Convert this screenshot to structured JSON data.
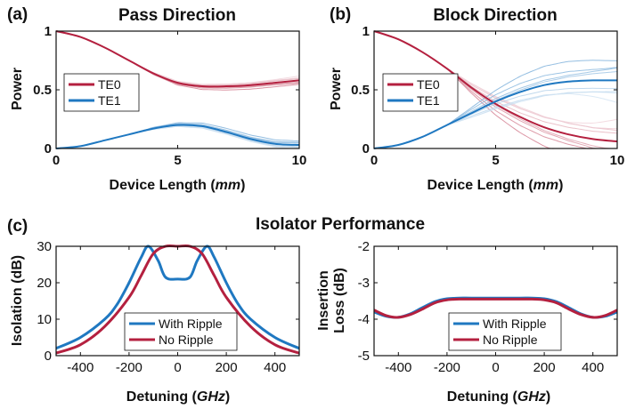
{
  "colors": {
    "te0": "#b4203f",
    "te1": "#1f78c1",
    "with_ripple": "#1f78c1",
    "no_ripple": "#b4203f"
  },
  "chart_data": [
    {
      "panel": "(a)",
      "type": "line",
      "title": "Pass Direction",
      "xlabel": "Device Length (mm)",
      "xlabel_main": "Device Length (",
      "xlabel_unit": "mm",
      "xlabel_close": ")",
      "ylabel": "Power",
      "xlim": [
        0,
        10
      ],
      "ylim": [
        0,
        1
      ],
      "xticks": [
        0,
        5,
        10
      ],
      "yticks": [
        0,
        0.5,
        1
      ],
      "xtick_labels": [
        "0",
        "5",
        "10"
      ],
      "ytick_labels": [
        "0",
        "0.5",
        "1"
      ],
      "legend": {
        "position": "left",
        "entries": [
          "TE0",
          "TE1"
        ]
      },
      "series": [
        {
          "name": "TE0",
          "x": [
            0,
            1,
            2,
            3,
            4,
            5,
            6,
            7,
            8,
            9,
            10
          ],
          "values": [
            1.0,
            0.95,
            0.86,
            0.75,
            0.64,
            0.56,
            0.53,
            0.53,
            0.54,
            0.56,
            0.58
          ]
        },
        {
          "name": "TE1",
          "x": [
            0,
            1,
            2,
            3,
            4,
            5,
            6,
            7,
            8,
            9,
            10
          ],
          "values": [
            0.0,
            0.02,
            0.07,
            0.12,
            0.17,
            0.2,
            0.19,
            0.14,
            0.08,
            0.04,
            0.03
          ]
        }
      ],
      "ripple_shading": true
    },
    {
      "panel": "(b)",
      "type": "line",
      "title": "Block Direction",
      "xlabel": "Device Length (mm)",
      "xlabel_main": "Device Length (",
      "xlabel_unit": "mm",
      "xlabel_close": ")",
      "ylabel": "Power",
      "xlim": [
        0,
        10
      ],
      "ylim": [
        0,
        1
      ],
      "xticks": [
        0,
        5,
        10
      ],
      "yticks": [
        0,
        0.5,
        1
      ],
      "xtick_labels": [
        "0",
        "5",
        "10"
      ],
      "ytick_labels": [
        "0",
        "0.5",
        "1"
      ],
      "legend": {
        "position": "left",
        "entries": [
          "TE0",
          "TE1"
        ]
      },
      "series": [
        {
          "name": "TE0",
          "x": [
            0,
            1,
            2,
            3,
            4,
            5,
            6,
            7,
            8,
            9,
            10
          ],
          "values": [
            1.0,
            0.93,
            0.82,
            0.68,
            0.52,
            0.38,
            0.27,
            0.18,
            0.12,
            0.08,
            0.06
          ]
        },
        {
          "name": "TE1",
          "x": [
            0,
            1,
            2,
            3,
            4,
            5,
            6,
            7,
            8,
            9,
            10
          ],
          "values": [
            0.0,
            0.03,
            0.1,
            0.2,
            0.3,
            0.4,
            0.48,
            0.54,
            0.57,
            0.58,
            0.58
          ]
        }
      ],
      "ripple_shading": true
    },
    {
      "panel": "(c)",
      "type": "line",
      "title": "Isolator Performance",
      "xlabel": "Detuning (GHz)",
      "xlabel_main": "Detuning (",
      "xlabel_unit": "GHz",
      "xlabel_close": ")",
      "ylabel": "Isolation (dB)",
      "xlim": [
        -500,
        500
      ],
      "ylim": [
        0,
        30
      ],
      "xticks": [
        -400,
        -200,
        0,
        200,
        400
      ],
      "yticks": [
        0,
        10,
        20,
        30
      ],
      "xtick_labels": [
        "-400",
        "-200",
        "0",
        "200",
        "400"
      ],
      "ytick_labels": [
        "0",
        "10",
        "20",
        "30"
      ],
      "legend": {
        "position": "bottom-center",
        "entries": [
          "With Ripple",
          "No Ripple"
        ]
      },
      "series": [
        {
          "name": "With Ripple",
          "x": [
            -500,
            -400,
            -300,
            -250,
            -200,
            -150,
            -120,
            -80,
            -50,
            0,
            50,
            80,
            120,
            150,
            200,
            250,
            300,
            400,
            500
          ],
          "values": [
            2,
            5,
            10,
            14,
            20,
            27,
            30,
            26,
            21.5,
            21,
            21.5,
            26,
            30,
            27,
            20,
            14,
            10,
            5,
            2
          ]
        },
        {
          "name": "No Ripple",
          "x": [
            -500,
            -400,
            -300,
            -200,
            -150,
            -100,
            -50,
            0,
            50,
            100,
            150,
            200,
            300,
            400,
            500
          ],
          "values": [
            0.7,
            3,
            8,
            16,
            22,
            28,
            30,
            30,
            30,
            28,
            22,
            16,
            8,
            3,
            0.7
          ]
        }
      ]
    },
    {
      "panel": "",
      "type": "line",
      "title": "",
      "xlabel": "Detuning (GHz)",
      "xlabel_main": "Detuning (",
      "xlabel_unit": "GHz",
      "xlabel_close": ")",
      "ylabel_line1": "Insertion",
      "ylabel_line2": "Loss (dB)",
      "ylabel": "Insertion Loss (dB)",
      "xlim": [
        -500,
        500
      ],
      "ylim": [
        -5,
        -2
      ],
      "xticks": [
        -400,
        -200,
        0,
        200,
        400
      ],
      "yticks": [
        -5,
        -4,
        -3,
        -2
      ],
      "xtick_labels": [
        "-400",
        "-200",
        "0",
        "200",
        "400"
      ],
      "ytick_labels": [
        "-5",
        "-4",
        "-3",
        "-2"
      ],
      "legend": {
        "position": "bottom-right",
        "entries": [
          "With Ripple",
          "No Ripple"
        ]
      },
      "series": [
        {
          "name": "With Ripple",
          "x": [
            -500,
            -450,
            -400,
            -350,
            -300,
            -250,
            -200,
            -150,
            -100,
            0,
            100,
            150,
            200,
            250,
            300,
            350,
            400,
            450,
            500
          ],
          "values": [
            -3.8,
            -3.92,
            -3.95,
            -3.85,
            -3.68,
            -3.52,
            -3.44,
            -3.42,
            -3.42,
            -3.42,
            -3.42,
            -3.42,
            -3.44,
            -3.52,
            -3.68,
            -3.85,
            -3.95,
            -3.92,
            -3.8
          ]
        },
        {
          "name": "No Ripple",
          "x": [
            -500,
            -450,
            -400,
            -350,
            -300,
            -250,
            -200,
            -150,
            -100,
            0,
            100,
            150,
            200,
            250,
            300,
            350,
            400,
            450,
            500
          ],
          "values": [
            -3.75,
            -3.9,
            -3.95,
            -3.87,
            -3.72,
            -3.55,
            -3.47,
            -3.45,
            -3.45,
            -3.45,
            -3.45,
            -3.45,
            -3.47,
            -3.55,
            -3.72,
            -3.87,
            -3.95,
            -3.9,
            -3.75
          ]
        }
      ]
    }
  ]
}
